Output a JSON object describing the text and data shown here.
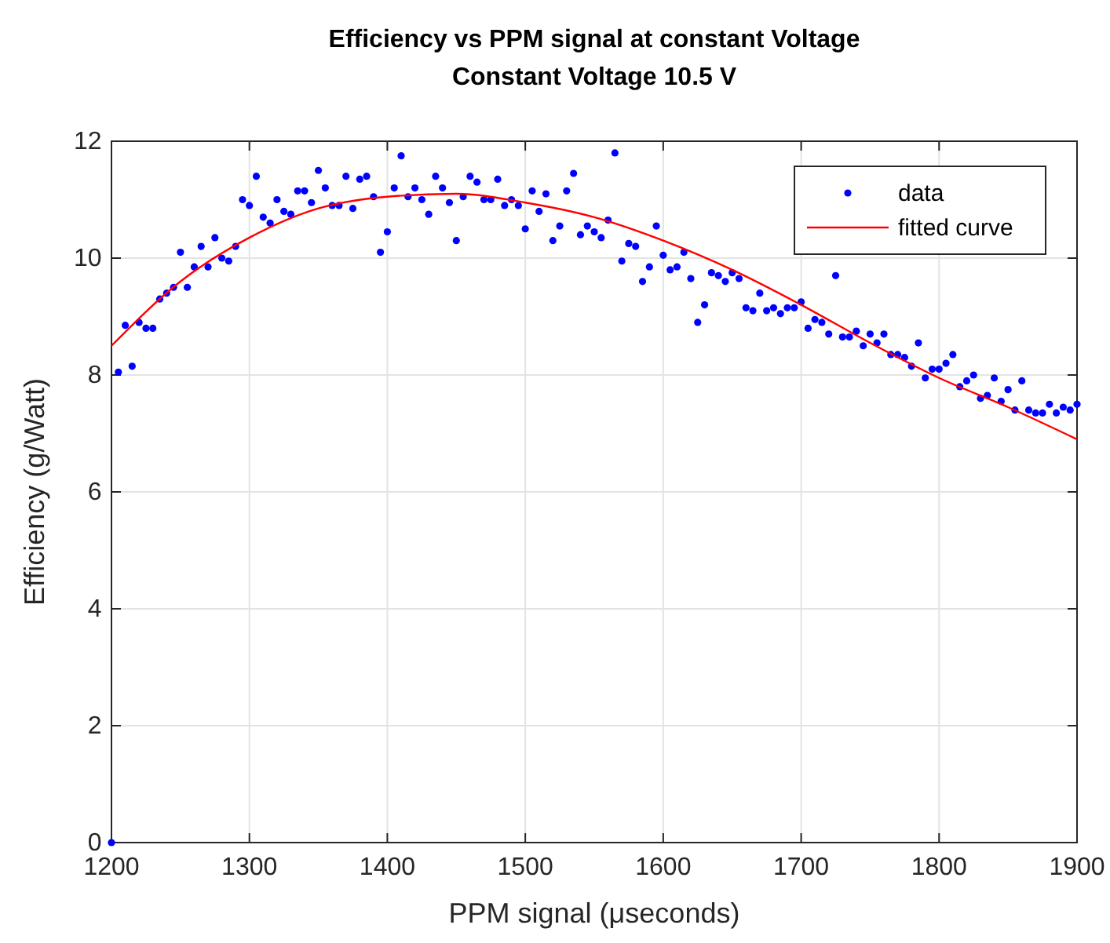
{
  "chart_data": {
    "type": "scatter",
    "title": "Efficiency vs PPM signal at constant Voltage",
    "subtitle": "Constant Voltage 10.5 V",
    "xlabel": "PPM signal (μseconds)",
    "ylabel": "Efficiency (g/Watt)",
    "xlim": [
      1200,
      1900
    ],
    "xticks": [
      1200,
      1300,
      1400,
      1500,
      1600,
      1700,
      1800,
      1900
    ],
    "ylim": [
      0,
      12
    ],
    "yticks": [
      0,
      2,
      4,
      6,
      8,
      10,
      12
    ],
    "grid": true,
    "legend": "top right",
    "series": [
      {
        "name": "data",
        "marker": "circle",
        "color": "#0000ff",
        "x": [
          1200,
          1205,
          1210,
          1215,
          1220,
          1225,
          1230,
          1235,
          1240,
          1245,
          1250,
          1255,
          1260,
          1265,
          1270,
          1275,
          1280,
          1285,
          1290,
          1295,
          1300,
          1305,
          1310,
          1315,
          1320,
          1325,
          1330,
          1335,
          1340,
          1345,
          1350,
          1355,
          1360,
          1365,
          1370,
          1375,
          1380,
          1385,
          1390,
          1395,
          1400,
          1405,
          1410,
          1415,
          1420,
          1425,
          1430,
          1435,
          1440,
          1445,
          1450,
          1455,
          1460,
          1465,
          1470,
          1475,
          1480,
          1485,
          1490,
          1495,
          1500,
          1505,
          1510,
          1515,
          1520,
          1525,
          1530,
          1535,
          1540,
          1545,
          1550,
          1555,
          1560,
          1565,
          1570,
          1575,
          1580,
          1585,
          1590,
          1595,
          1600,
          1605,
          1610,
          1615,
          1620,
          1625,
          1630,
          1635,
          1640,
          1645,
          1650,
          1655,
          1660,
          1665,
          1670,
          1675,
          1680,
          1685,
          1690,
          1695,
          1700,
          1705,
          1710,
          1715,
          1720,
          1725,
          1730,
          1735,
          1740,
          1745,
          1750,
          1755,
          1760,
          1765,
          1770,
          1775,
          1780,
          1785,
          1790,
          1795,
          1800,
          1805,
          1810,
          1815,
          1820,
          1825,
          1830,
          1835,
          1840,
          1845,
          1850,
          1855,
          1860,
          1865,
          1870,
          1875,
          1880,
          1885,
          1890,
          1895,
          1900
        ],
        "values": [
          0,
          8.05,
          8.85,
          8.15,
          8.9,
          8.8,
          8.8,
          9.3,
          9.4,
          9.5,
          10.1,
          9.5,
          9.85,
          10.2,
          9.85,
          10.35,
          10.0,
          9.95,
          10.2,
          11.0,
          10.9,
          11.4,
          10.7,
          10.6,
          11.0,
          10.8,
          10.75,
          11.15,
          11.15,
          10.95,
          11.5,
          11.2,
          10.9,
          10.9,
          11.4,
          10.85,
          11.35,
          11.4,
          11.05,
          10.1,
          10.45,
          11.2,
          11.75,
          11.05,
          11.2,
          11.0,
          10.75,
          11.4,
          11.2,
          10.95,
          10.3,
          11.05,
          11.4,
          11.3,
          11.0,
          11.0,
          11.35,
          10.9,
          11.0,
          10.9,
          10.5,
          11.15,
          10.8,
          11.1,
          10.3,
          10.55,
          11.15,
          11.45,
          10.4,
          10.55,
          10.45,
          10.35,
          10.65,
          11.8,
          9.95,
          10.25,
          10.2,
          9.6,
          9.85,
          10.55,
          10.05,
          9.8,
          9.85,
          10.1,
          9.65,
          8.9,
          9.2,
          9.75,
          9.7,
          9.6,
          9.75,
          9.65,
          9.15,
          9.1,
          9.4,
          9.1,
          9.15,
          9.05,
          9.15,
          9.15,
          9.25,
          8.8,
          8.95,
          8.9,
          8.7,
          9.7,
          8.65,
          8.65,
          8.75,
          8.5,
          8.7,
          8.55,
          8.7,
          8.35,
          8.35,
          8.3,
          8.15,
          8.55,
          7.95,
          8.1,
          8.1,
          8.2,
          8.35,
          7.8,
          7.9,
          8.0,
          7.6,
          7.65,
          7.95,
          7.55,
          7.75,
          7.4,
          7.9,
          7.4,
          7.35,
          7.35,
          7.5,
          7.35,
          7.45,
          7.4,
          7.5
        ]
      },
      {
        "name": "fitted curve",
        "type": "line",
        "line_style": "solid",
        "color": "#ff0000",
        "x": [
          1200,
          1250,
          1300,
          1350,
          1400,
          1450,
          1500,
          1550,
          1600,
          1650,
          1700,
          1750,
          1800,
          1850,
          1900
        ],
        "values": [
          8.5,
          9.6,
          10.35,
          10.85,
          11.05,
          11.1,
          10.95,
          10.7,
          10.3,
          9.8,
          9.2,
          8.55,
          7.95,
          7.45,
          6.9
        ]
      }
    ]
  }
}
